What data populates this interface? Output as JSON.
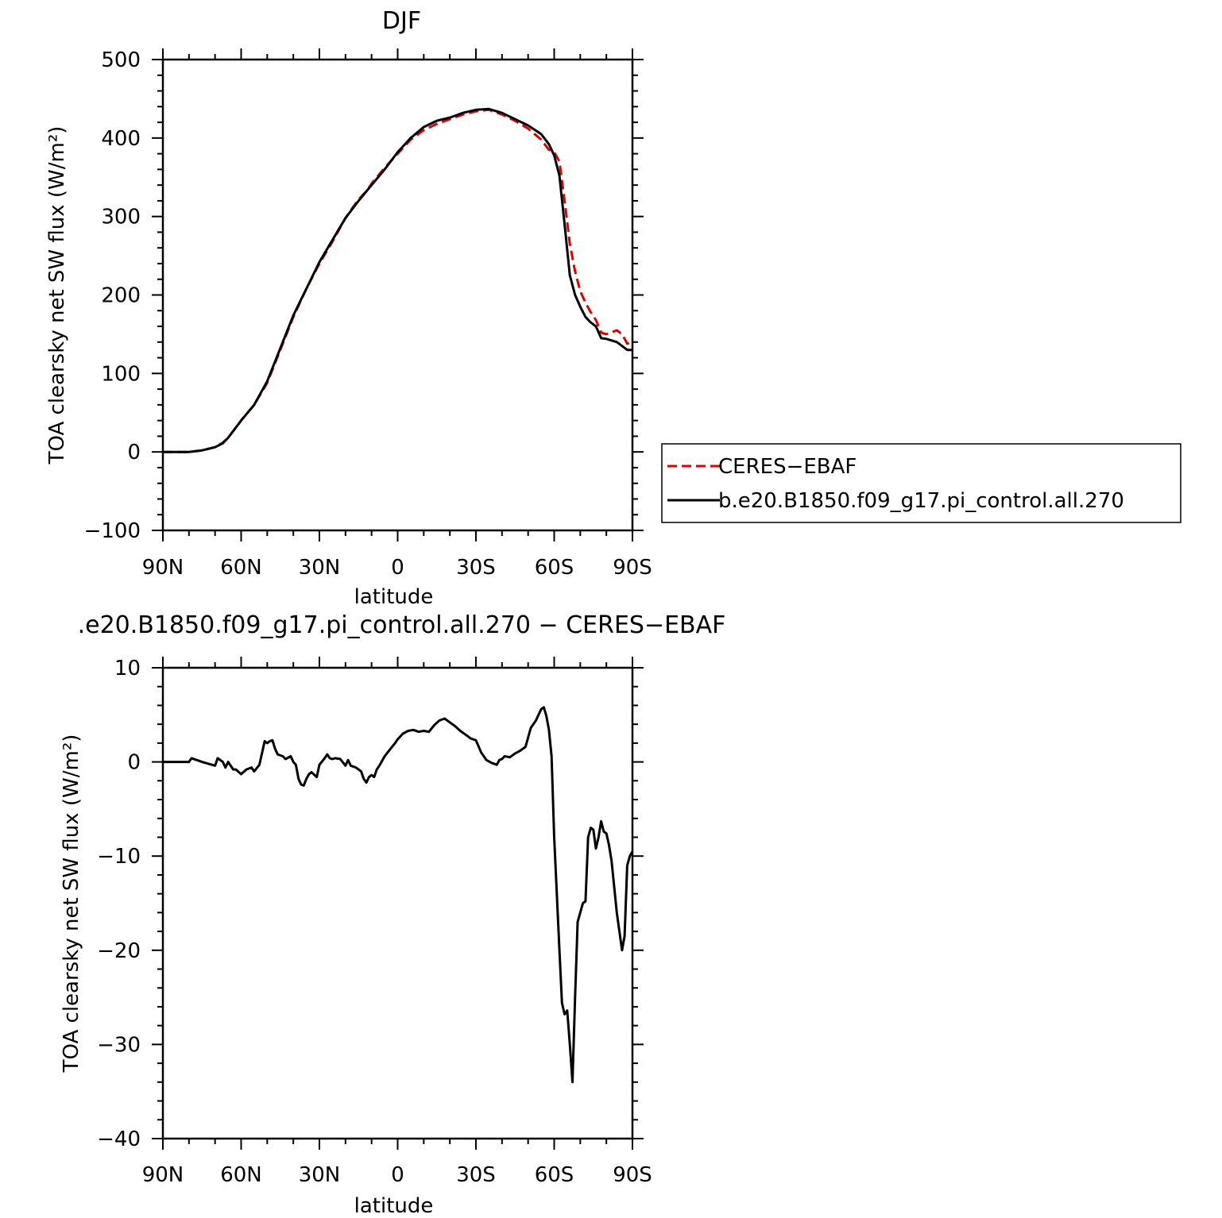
{
  "chart_data": [
    {
      "type": "line",
      "title": "DJF",
      "xlabel": "latitude",
      "ylabel": "TOA clearsky net SW flux (W/m²)",
      "xlim": [
        90,
        -90
      ],
      "ylim": [
        -100,
        500
      ],
      "x_ticks": [
        90,
        60,
        30,
        0,
        -30,
        -60,
        -90
      ],
      "x_tick_labels": [
        "90N",
        "60N",
        "30N",
        "0",
        "30S",
        "60S",
        "90S"
      ],
      "y_ticks": [
        -100,
        0,
        100,
        200,
        300,
        400,
        500
      ],
      "y_tick_labels": [
        "−100",
        "0",
        "100",
        "200",
        "300",
        "400",
        "500"
      ],
      "legend_position": "right",
      "series": [
        {
          "name": "CERES−EBAF",
          "color": "#dd0000",
          "dash": "dashed",
          "x": [
            90,
            85,
            80,
            75,
            70,
            67,
            65,
            60,
            55,
            50,
            45,
            40,
            35,
            30,
            25,
            20,
            15,
            12,
            10,
            5,
            0,
            -5,
            -10,
            -15,
            -20,
            -25,
            -30,
            -35,
            -40,
            -45,
            -50,
            -55,
            -58,
            -60,
            -62,
            -64,
            -66,
            -68,
            -70,
            -72,
            -74,
            -76,
            -78,
            -80,
            -84,
            -86,
            -88,
            -90
          ],
          "y": [
            0,
            0,
            0,
            2,
            6,
            12,
            18,
            40,
            60,
            88,
            130,
            172,
            208,
            240,
            268,
            298,
            322,
            332,
            342,
            362,
            380,
            398,
            410,
            418,
            424,
            430,
            434,
            436,
            430,
            422,
            412,
            398,
            385,
            382,
            370,
            320,
            265,
            230,
            205,
            190,
            178,
            168,
            152,
            150,
            155,
            150,
            138,
            140
          ]
        },
        {
          "name": "b.e20.B1850.f09_g17.pi_control.all.270",
          "color": "#000000",
          "dash": "solid",
          "x": [
            90,
            85,
            80,
            75,
            70,
            67,
            65,
            60,
            55,
            50,
            45,
            40,
            35,
            30,
            25,
            20,
            15,
            12,
            10,
            5,
            0,
            -5,
            -10,
            -15,
            -20,
            -25,
            -30,
            -35,
            -40,
            -45,
            -50,
            -55,
            -58,
            -60,
            -62,
            -64,
            -66,
            -68,
            -70,
            -72,
            -74,
            -76,
            -78,
            -80,
            -84,
            -86,
            -88,
            -90
          ],
          "y": [
            0,
            0,
            0,
            2,
            6,
            11,
            18,
            40,
            60,
            90,
            132,
            174,
            208,
            242,
            270,
            298,
            320,
            332,
            340,
            360,
            382,
            400,
            414,
            422,
            426,
            432,
            436,
            437,
            432,
            424,
            416,
            405,
            392,
            378,
            352,
            290,
            225,
            200,
            185,
            172,
            165,
            160,
            145,
            144,
            140,
            135,
            130,
            130
          ]
        }
      ]
    },
    {
      "type": "line",
      "title": ".e20.B1850.f09_g17.pi_control.all.270 − CERES−EBAF",
      "xlabel": "latitude",
      "ylabel": "TOA clearsky net SW flux (W/m²)",
      "xlim": [
        90,
        -90
      ],
      "ylim": [
        -40,
        10
      ],
      "x_ticks": [
        90,
        60,
        30,
        0,
        -30,
        -60,
        -90
      ],
      "x_tick_labels": [
        "90N",
        "60N",
        "30N",
        "0",
        "30S",
        "60S",
        "90S"
      ],
      "y_ticks": [
        -40,
        -30,
        -20,
        -10,
        0,
        10
      ],
      "y_tick_labels": [
        "−40",
        "−30",
        "−20",
        "−10",
        "0",
        "10"
      ],
      "series": [
        {
          "color": "#000000",
          "dash": "solid",
          "x": [
            90,
            80,
            79,
            75,
            70,
            69,
            67,
            66,
            65,
            63,
            62,
            60,
            58,
            56,
            55,
            53,
            51,
            50,
            49,
            48,
            47,
            46,
            44,
            43,
            41,
            40,
            39,
            38,
            37,
            36,
            35,
            34,
            33,
            31,
            30,
            28,
            27,
            26,
            25,
            24,
            22,
            20,
            19,
            18,
            16,
            14,
            13,
            12,
            11,
            10,
            9,
            8,
            7,
            5,
            3,
            1,
            0,
            -2,
            -4,
            -6,
            -8,
            -10,
            -12,
            -14,
            -16,
            -18,
            -20,
            -22,
            -24,
            -26,
            -28,
            -30,
            -32,
            -34,
            -36,
            -38,
            -39,
            -40,
            -41,
            -43,
            -45,
            -47,
            -49,
            -51,
            -53,
            -55,
            -56,
            -57,
            -58,
            -59,
            -60,
            -61,
            -62,
            -63,
            -64,
            -65,
            -66,
            -67,
            -68,
            -69,
            -70,
            -71,
            -72,
            -73,
            -74,
            -75,
            -76,
            -77,
            -78,
            -79,
            -80,
            -81,
            -82,
            -84,
            -86,
            -87,
            -88,
            -89,
            -90
          ],
          "y": [
            0,
            0,
            0.4,
            0,
            -0.4,
            0.4,
            0,
            -0.6,
            0,
            -0.8,
            -0.8,
            -1.3,
            -0.8,
            -0.6,
            -1.0,
            -0.3,
            2.2,
            2.0,
            2.2,
            2.3,
            1.4,
            0.8,
            0.6,
            0.3,
            0.6,
            0,
            -0.3,
            -1.8,
            -2.4,
            -2.5,
            -1.8,
            -1.3,
            -1.1,
            -1.6,
            -0.3,
            0.4,
            0.8,
            0.4,
            0.3,
            0.4,
            0.3,
            -0.4,
            0.2,
            -0.4,
            -0.6,
            -1.0,
            -1.8,
            -2.2,
            -1.6,
            -1.4,
            -1.6,
            -0.8,
            -0.4,
            0.6,
            1.3,
            2.0,
            2.4,
            3.0,
            3.3,
            3.4,
            3.2,
            3.3,
            3.2,
            3.9,
            4.4,
            4.6,
            4.2,
            3.8,
            3.3,
            2.9,
            2.5,
            2.3,
            1.0,
            0.2,
            -0.1,
            -0.3,
            0.2,
            0.3,
            0.6,
            0.5,
            0.9,
            1.2,
            1.6,
            3.6,
            4.4,
            5.6,
            5.8,
            4.9,
            3.4,
            0.6,
            -8.0,
            -14.0,
            -20.0,
            -25.6,
            -26.8,
            -26.4,
            -30.0,
            -34.0,
            -25.0,
            -17.0,
            -16.0,
            -15.0,
            -14.8,
            -8.0,
            -7.0,
            -7.2,
            -9.2,
            -8.0,
            -6.3,
            -7.4,
            -7.6,
            -8.8,
            -10.5,
            -16.0,
            -20.0,
            -18.5,
            -11.0,
            -10.0,
            -9.5
          ]
        }
      ]
    }
  ]
}
